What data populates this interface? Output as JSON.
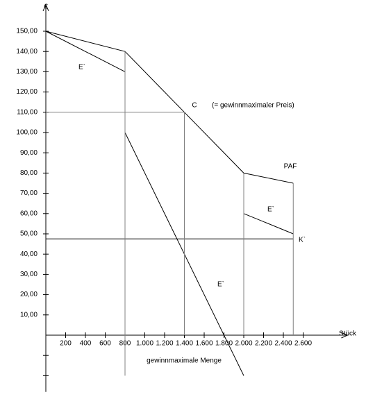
{
  "chart_data": {
    "type": "line",
    "x_label": "Stück",
    "y_label": "€",
    "annotations": [
      "C",
      "(= gewinnmaximaler Preis)",
      "gewinnmaximale Menge"
    ],
    "xlim": [
      0,
      3000
    ],
    "ylim": [
      -28,
      160
    ],
    "xticks": [
      200,
      400,
      600,
      800,
      {
        "value": 1000,
        "label": "1.000"
      },
      {
        "value": 1200,
        "label": "1.200"
      },
      {
        "value": 1400,
        "label": "1.400"
      },
      {
        "value": 1600,
        "label": "1.600"
      },
      {
        "value": 1800,
        "label": "1.800"
      },
      {
        "value": 2000,
        "label": "2.000"
      },
      {
        "value": 2200,
        "label": "2.200"
      },
      {
        "value": 2400,
        "label": "2.400"
      },
      {
        "value": 2600,
        "label": "2.600"
      }
    ],
    "yticks": [
      {
        "value": -20,
        "label": null
      },
      {
        "value": -10,
        "label": null
      },
      {
        "value": 10,
        "label": "10,00"
      },
      {
        "value": 20,
        "label": "20,00"
      },
      {
        "value": 30,
        "label": "30,00"
      },
      {
        "value": 40,
        "label": "40,00"
      },
      {
        "value": 50,
        "label": "50,00"
      },
      {
        "value": 60,
        "label": "60,00"
      },
      {
        "value": 70,
        "label": "70,00"
      },
      {
        "value": 80,
        "label": "80,00"
      },
      {
        "value": 90,
        "label": "90,00"
      },
      {
        "value": 100,
        "label": "100,00"
      },
      {
        "value": 110,
        "label": "110,00"
      },
      {
        "value": 120,
        "label": "120,00"
      },
      {
        "value": 130,
        "label": "130,00"
      },
      {
        "value": 140,
        "label": "140,00"
      },
      {
        "value": 150,
        "label": "150,00"
      }
    ],
    "series": [
      {
        "name": "PAF",
        "color": "#000000",
        "x": [
          0,
          800,
          1400,
          2000,
          2500
        ],
        "values": [
          150,
          140,
          110,
          80,
          75
        ]
      },
      {
        "name": "E`",
        "color": "#000000",
        "x": [
          0,
          800
        ],
        "values": [
          150,
          130
        ]
      },
      {
        "name": "E`",
        "color": "#000000",
        "x": [
          800,
          2000
        ],
        "values": [
          100,
          -20
        ]
      },
      {
        "name": "E`",
        "color": "#000000",
        "x": [
          2000,
          2500
        ],
        "values": [
          60,
          50
        ]
      },
      {
        "name": "K`",
        "color": "#000000",
        "x": [
          0,
          2500
        ],
        "values": [
          47.5,
          47.5
        ]
      },
      {
        "color": "#808080",
        "x": [
          0,
          1400
        ],
        "values": [
          110,
          110
        ]
      },
      {
        "color": "#808080",
        "x": [
          800,
          800
        ],
        "values": [
          140,
          -20
        ]
      },
      {
        "color": "#808080",
        "x": [
          1400,
          1400
        ],
        "values": [
          110,
          0
        ]
      },
      {
        "color": "#808080",
        "x": [
          2000,
          2000
        ],
        "values": [
          80,
          0
        ]
      },
      {
        "color": "#808080",
        "x": [
          2500,
          2500
        ],
        "values": [
          75,
          0
        ]
      }
    ]
  }
}
